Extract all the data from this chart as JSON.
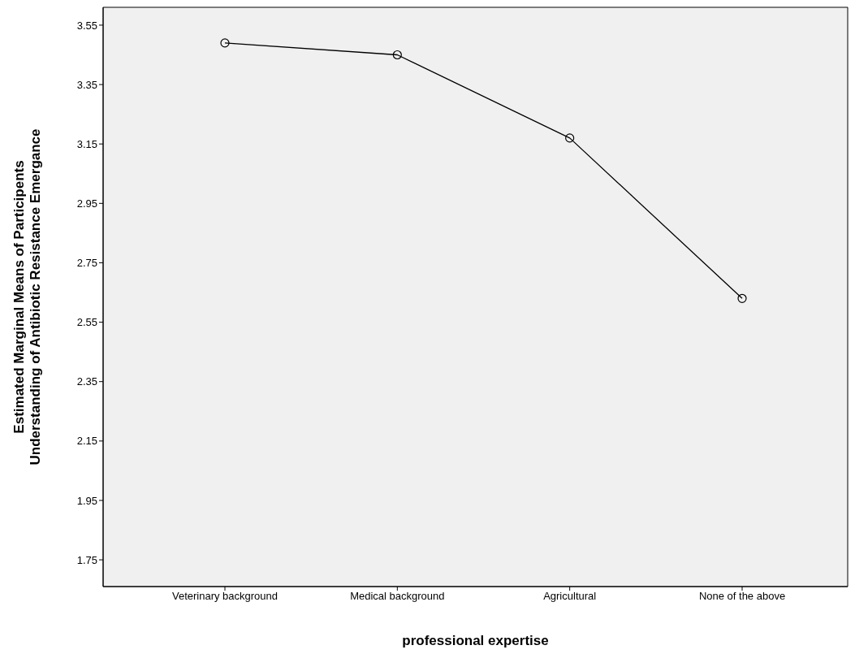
{
  "chart_data": {
    "type": "line",
    "xlabel": "professional expertise",
    "ylabel": "Estimated Marginal Means of Participents\nUnderstanding of Antibiotic Resistance Emergance",
    "categories": [
      "Veterinary background",
      "Medical background",
      "Agricultural",
      "None of the above"
    ],
    "series": [
      {
        "color": "#000000",
        "values": [
          3.49,
          3.45,
          3.17,
          2.63
        ]
      }
    ],
    "ylim": [
      1.66,
      3.61
    ],
    "yticks": [
      1.75,
      1.95,
      2.15,
      2.35,
      2.55,
      2.75,
      2.95,
      3.15,
      3.35,
      3.55
    ],
    "grid": false,
    "marker": "circle",
    "line_style": "solid"
  }
}
